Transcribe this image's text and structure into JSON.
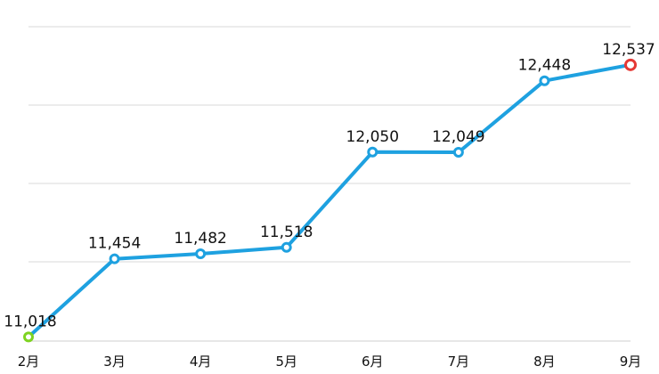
{
  "chart_data": {
    "type": "line",
    "categories": [
      "2月",
      "3月",
      "4月",
      "5月",
      "6月",
      "7月",
      "8月",
      "9月"
    ],
    "values": [
      11018,
      11454,
      11482,
      11518,
      12050,
      12049,
      12448,
      12537
    ],
    "value_labels": [
      "11,018",
      "11,454",
      "11,482",
      "11,518",
      "12,050",
      "12,049",
      "12,448",
      "12,537"
    ],
    "ylim": [
      11000,
      12750
    ],
    "grid": true,
    "colors": {
      "line": "#1ea1e0",
      "point": "#1ea1e0",
      "first_point": "#7ed321",
      "last_point": "#e53935"
    }
  }
}
